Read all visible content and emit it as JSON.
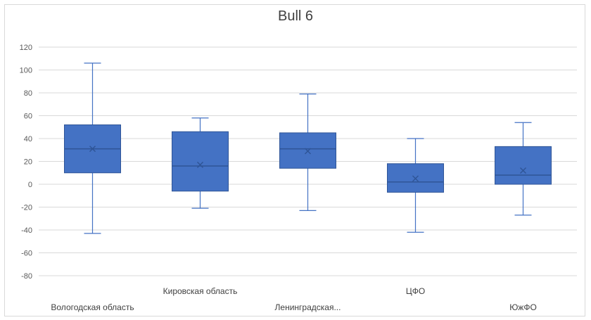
{
  "chart_data": {
    "type": "boxplot",
    "title": "Bull 6",
    "ylim": [
      -80,
      120
    ],
    "yticks": [
      -80,
      -60,
      -40,
      -20,
      0,
      20,
      40,
      60,
      80,
      100,
      120
    ],
    "grid": true,
    "colors": {
      "box": "#4472c4",
      "outline": "#2f5597",
      "grid": "#d9d9d9"
    },
    "categories": [
      "Вологодская область",
      "Кировская область",
      "Ленинградская...",
      "ЦФО",
      "ЮжФО"
    ],
    "boxes": [
      {
        "min": -43,
        "q1": 10,
        "median": 31,
        "q3": 52,
        "max": 106,
        "mean": 31
      },
      {
        "min": -21,
        "q1": -6,
        "median": 16,
        "q3": 46,
        "max": 58,
        "mean": 17
      },
      {
        "min": -23,
        "q1": 14,
        "median": 31,
        "q3": 45,
        "max": 79,
        "mean": 29
      },
      {
        "min": -42,
        "q1": -7,
        "median": 2,
        "q3": 18,
        "max": 40,
        "mean": 5
      },
      {
        "min": -27,
        "q1": 0,
        "median": 8,
        "q3": 33,
        "max": 54,
        "mean": 12
      }
    ]
  }
}
